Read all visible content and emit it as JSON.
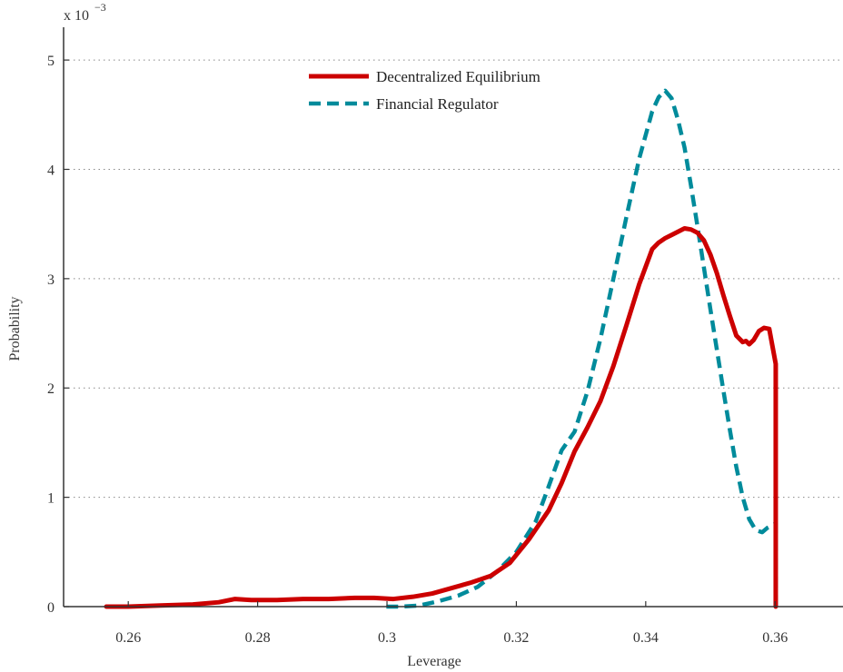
{
  "chart_data": {
    "type": "line",
    "title": "",
    "xlabel": "Leverage",
    "ylabel": "Probability",
    "y_multiplier_label": "x 10",
    "y_multiplier_exponent": "−3",
    "xlim": [
      0.25,
      0.3705
    ],
    "ylim": [
      0,
      5.3
    ],
    "xticks": [
      0.26,
      0.28,
      0.3,
      0.32,
      0.34,
      0.36
    ],
    "xtick_labels": [
      "0.26",
      "0.28",
      "0.3",
      "0.32",
      "0.34",
      "0.36"
    ],
    "yticks": [
      0,
      1,
      2,
      3,
      4,
      5
    ],
    "ytick_labels": [
      "0",
      "1",
      "2",
      "3",
      "4",
      "5"
    ],
    "grid": "horizontal dotted",
    "legend_position": "top-center",
    "series": [
      {
        "name": "Decentralized Equilibrium",
        "color": "#cc0000",
        "style": "solid",
        "x": [
          0.2566,
          0.26,
          0.265,
          0.27,
          0.274,
          0.2765,
          0.279,
          0.283,
          0.287,
          0.291,
          0.295,
          0.298,
          0.301,
          0.304,
          0.307,
          0.31,
          0.313,
          0.316,
          0.319,
          0.322,
          0.325,
          0.327,
          0.329,
          0.331,
          0.333,
          0.335,
          0.337,
          0.339,
          0.341,
          0.342,
          0.343,
          0.344,
          0.345,
          0.346,
          0.347,
          0.348,
          0.349,
          0.35,
          0.351,
          0.352,
          0.353,
          0.354,
          0.355,
          0.3555,
          0.356,
          0.3567,
          0.3575,
          0.3583,
          0.3591,
          0.3596,
          0.3601,
          0.3601
        ],
        "y": [
          0.0,
          0.0,
          0.01,
          0.02,
          0.04,
          0.07,
          0.06,
          0.06,
          0.07,
          0.07,
          0.08,
          0.08,
          0.07,
          0.09,
          0.12,
          0.17,
          0.22,
          0.28,
          0.4,
          0.62,
          0.88,
          1.13,
          1.42,
          1.64,
          1.88,
          2.2,
          2.57,
          2.95,
          3.27,
          3.33,
          3.37,
          3.4,
          3.43,
          3.46,
          3.45,
          3.42,
          3.35,
          3.22,
          3.05,
          2.85,
          2.66,
          2.48,
          2.42,
          2.43,
          2.4,
          2.44,
          2.52,
          2.55,
          2.54,
          2.38,
          2.22,
          0.0
        ]
      },
      {
        "name": "Financial Regulator",
        "color": "#008b9b",
        "style": "dashed",
        "x": [
          0.2999,
          0.302,
          0.305,
          0.308,
          0.311,
          0.314,
          0.317,
          0.32,
          0.323,
          0.325,
          0.327,
          0.329,
          0.331,
          0.333,
          0.335,
          0.337,
          0.339,
          0.341,
          0.342,
          0.343,
          0.344,
          0.345,
          0.346,
          0.347,
          0.348,
          0.349,
          0.35,
          0.351,
          0.352,
          0.353,
          0.354,
          0.355,
          0.356,
          0.357,
          0.358,
          0.3588,
          0.3595,
          0.3601,
          0.3601
        ],
        "y": [
          0.0,
          0.0,
          0.01,
          0.05,
          0.1,
          0.18,
          0.32,
          0.5,
          0.78,
          1.1,
          1.43,
          1.6,
          1.97,
          2.45,
          3.0,
          3.56,
          4.1,
          4.53,
          4.66,
          4.72,
          4.65,
          4.45,
          4.2,
          3.85,
          3.48,
          3.1,
          2.72,
          2.35,
          1.98,
          1.62,
          1.28,
          1.0,
          0.8,
          0.7,
          0.68,
          0.72,
          0.74,
          0.76,
          0.0
        ]
      }
    ]
  }
}
